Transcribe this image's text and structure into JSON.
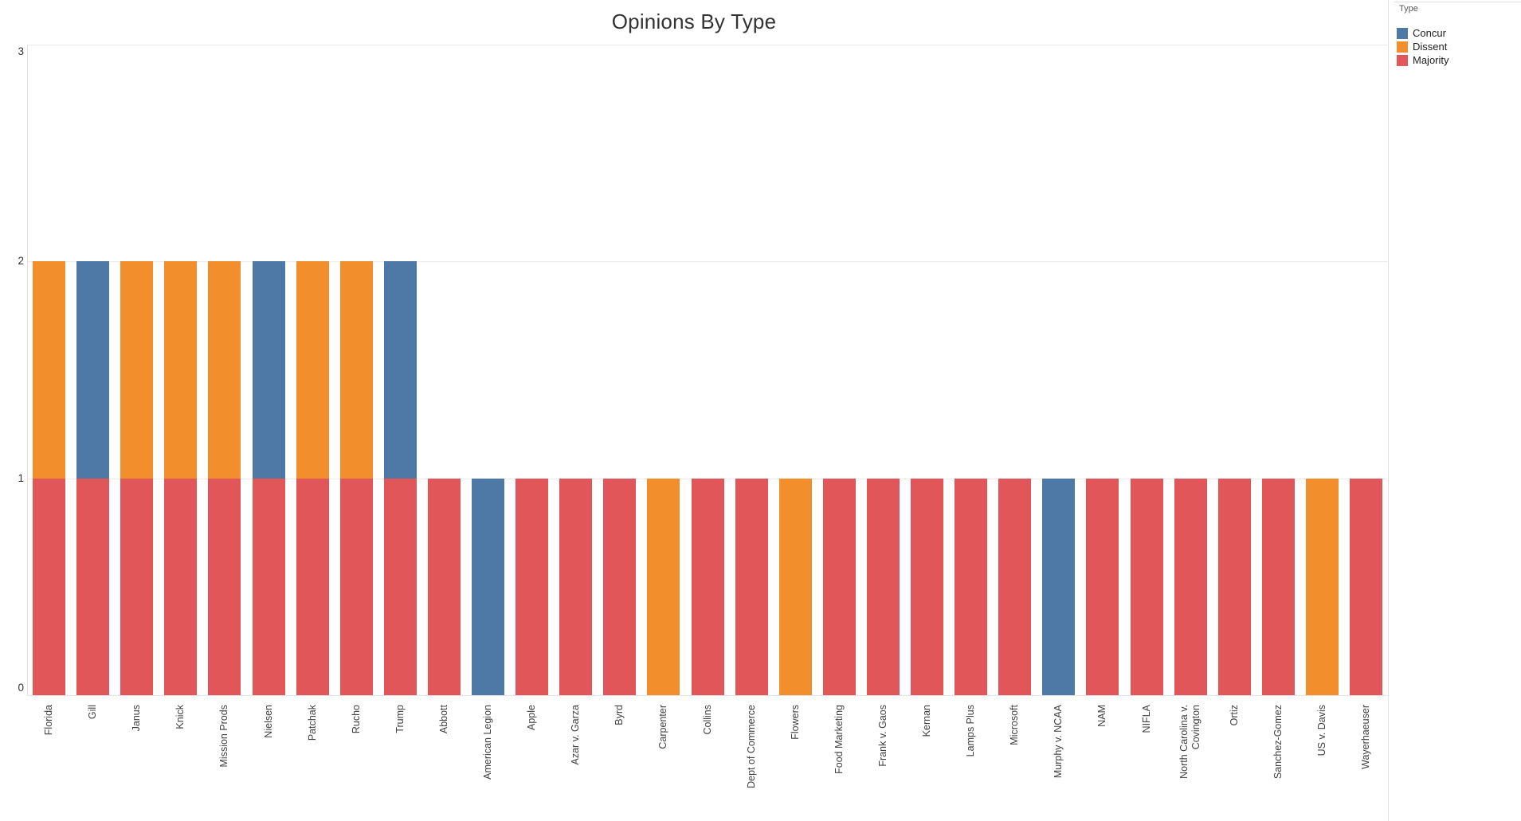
{
  "title": "Opinions By Type",
  "legend": {
    "title": "Type",
    "entries": [
      {
        "label": "Concur",
        "color": "#4e79a7"
      },
      {
        "label": "Dissent",
        "color": "#f28e2b"
      },
      {
        "label": "Majority",
        "color": "#e15759"
      }
    ]
  },
  "chart_data": {
    "type": "bar",
    "stacked": true,
    "title": "Opinions By Type",
    "xlabel": "",
    "ylabel": "",
    "ylim": [
      0,
      3
    ],
    "yticks": [
      "0",
      "1",
      "2",
      "3"
    ],
    "grid": "horizontal",
    "legend_position": "top-right",
    "categories": [
      "Florida",
      "Gill",
      "Janus",
      "Knick",
      "Mission Prods",
      "Nielsen",
      "Patchak",
      "Rucho",
      "Trump",
      "Abbott",
      "American Legion",
      "Apple",
      "Azar v. Garza",
      "Byrd",
      "Carpenter",
      "Collins",
      "Dept of Commerce",
      "Flowers",
      "Food Marketing",
      "Frank v. Gaos",
      "Kernan",
      "Lamps Plus",
      "Microsoft",
      "Murphy v. NCAA",
      "NAM",
      "NIFLA",
      "North Carolina v. Covington",
      "Ortiz",
      "Sanchez-Gomez",
      "US v. Davis",
      "Wayerhaeuser"
    ],
    "series": [
      {
        "name": "Concur",
        "color": "#4e79a7",
        "values": [
          0,
          1,
          0,
          0,
          0,
          1,
          0,
          0,
          1,
          0,
          1,
          0,
          0,
          0,
          0,
          0,
          0,
          0,
          0,
          0,
          0,
          0,
          0,
          1,
          0,
          0,
          0,
          0,
          0,
          0,
          0
        ]
      },
      {
        "name": "Dissent",
        "color": "#f28e2b",
        "values": [
          1,
          0,
          1,
          1,
          1,
          0,
          1,
          1,
          0,
          0,
          0,
          0,
          0,
          0,
          1,
          0,
          0,
          1,
          0,
          0,
          0,
          0,
          0,
          0,
          0,
          0,
          0,
          0,
          0,
          1,
          0
        ]
      },
      {
        "name": "Majority",
        "color": "#e15759",
        "values": [
          1,
          1,
          1,
          1,
          1,
          1,
          1,
          1,
          1,
          1,
          0,
          1,
          1,
          1,
          0,
          1,
          1,
          0,
          1,
          1,
          1,
          1,
          1,
          0,
          1,
          1,
          1,
          1,
          1,
          0,
          1
        ]
      }
    ],
    "stack_order_bottom_to_top": [
      "Majority",
      "Dissent",
      "Concur"
    ]
  }
}
